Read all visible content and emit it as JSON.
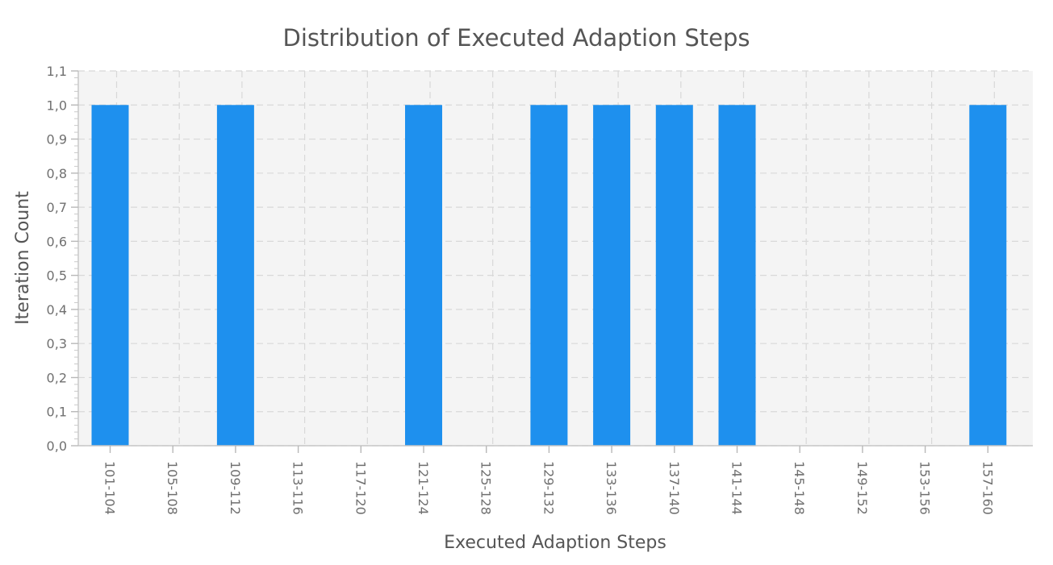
{
  "chart_data": {
    "type": "bar",
    "title": "Distribution of Executed Adaption Steps",
    "xlabel": "Executed Adaption Steps",
    "ylabel": "Iteration Count",
    "categories": [
      "101-104",
      "105-108",
      "109-112",
      "113-116",
      "117-120",
      "121-124",
      "125-128",
      "129-132",
      "133-136",
      "137-140",
      "141-144",
      "145-148",
      "149-152",
      "153-156",
      "157-160"
    ],
    "series": [
      {
        "values": [
          1,
          0,
          1,
          0,
          0,
          1,
          0,
          1,
          1,
          1,
          1,
          0,
          0,
          0,
          1
        ],
        "color": "#1e90ee"
      }
    ],
    "ylim": [
      0,
      1.1
    ],
    "yticks": [
      0,
      0.1,
      0.2,
      0.3,
      0.4,
      0.5,
      0.6,
      0.7,
      0.8,
      0.9,
      1.0,
      1.1
    ],
    "ytick_labels": [
      "0,0",
      "0,1",
      "0,2",
      "0,3",
      "0,4",
      "0,5",
      "0,6",
      "0,7",
      "0,8",
      "0,9",
      "1,0",
      "1,1"
    ],
    "grid": true,
    "legend": "none",
    "plot_background": "#f4f4f4"
  }
}
